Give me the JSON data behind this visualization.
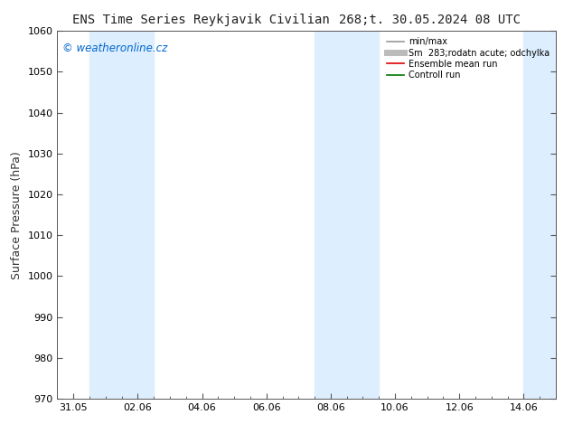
{
  "title_left": "ENS Time Series Reykjavik Civilian",
  "title_right": "268;t. 30.05.2024 08 UTC",
  "ylabel": "Surface Pressure (hPa)",
  "ylim": [
    970,
    1060
  ],
  "yticks": [
    970,
    980,
    990,
    1000,
    1010,
    1020,
    1030,
    1040,
    1050,
    1060
  ],
  "xtick_labels": [
    "31.05",
    "02.06",
    "04.06",
    "06.06",
    "08.06",
    "10.06",
    "12.06",
    "14.06"
  ],
  "xtick_positions": [
    0,
    2,
    4,
    6,
    8,
    10,
    12,
    14
  ],
  "xlim": [
    -0.5,
    15
  ],
  "watermark": "© weatheronline.cz",
  "watermark_color": "#0066cc",
  "shaded_bands": [
    {
      "x_start": 0.5,
      "x_end": 2.5,
      "color": "#ddeeff"
    },
    {
      "x_start": 7.5,
      "x_end": 9.5,
      "color": "#ddeeff"
    },
    {
      "x_start": 14.0,
      "x_end": 15.0,
      "color": "#ddeeff"
    }
  ],
  "legend_entries": [
    {
      "label": "min/max",
      "color": "#999999",
      "linestyle": "-",
      "linewidth": 1.2
    },
    {
      "label": "Sm  283;rodatn acute; odchylka",
      "color": "#bbbbbb",
      "linestyle": "-",
      "linewidth": 5
    },
    {
      "label": "Ensemble mean run",
      "color": "#dd0000",
      "linestyle": "-",
      "linewidth": 1.2
    },
    {
      "label": "Controll run",
      "color": "#007700",
      "linestyle": "-",
      "linewidth": 1.2
    }
  ],
  "background_color": "#ffffff",
  "plot_bg_color": "#ffffff",
  "title_fontsize": 10,
  "tick_fontsize": 8,
  "ylabel_fontsize": 9
}
